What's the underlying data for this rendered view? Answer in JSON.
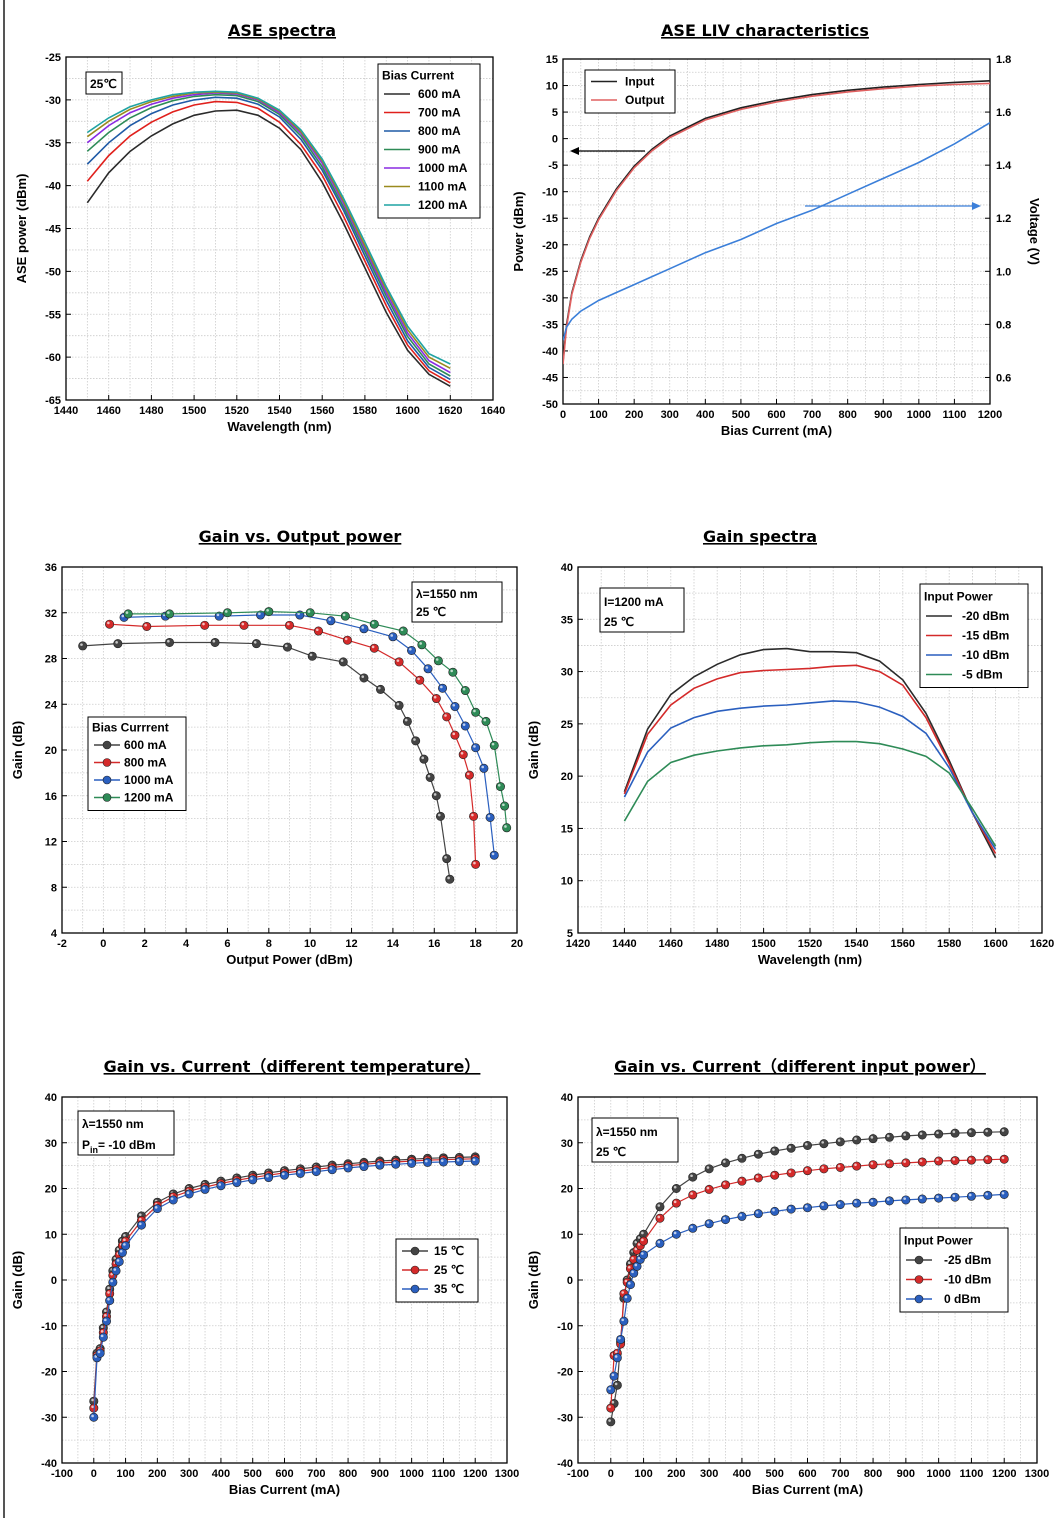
{
  "chart_data": [
    {
      "id": "ase-spectra",
      "type": "line",
      "title": "ASE spectra",
      "xlabel": "Wavelength (nm)",
      "ylabel": "ASE power (dBm)",
      "xlim": [
        1440,
        1640
      ],
      "ylim": [
        -65,
        -25
      ],
      "xticks": [
        1440,
        1460,
        1480,
        1500,
        1520,
        1540,
        1560,
        1580,
        1600,
        1620,
        1640
      ],
      "yticks": [
        -65,
        -60,
        -55,
        -50,
        -45,
        -40,
        -35,
        -30,
        -25
      ],
      "grid": true,
      "annotations": [
        "25℃"
      ],
      "legend_title": "Bias Current",
      "legend_position": "top-right",
      "x": [
        1450,
        1460,
        1470,
        1480,
        1490,
        1500,
        1510,
        1520,
        1530,
        1540,
        1550,
        1560,
        1570,
        1580,
        1590,
        1600,
        1610,
        1620
      ],
      "series": [
        {
          "name": "600 mA",
          "color": "#2b2b2b",
          "values": [
            -42,
            -38.5,
            -36,
            -34.2,
            -32.8,
            -31.8,
            -31.3,
            -31.2,
            -31.8,
            -33.3,
            -35.8,
            -39.6,
            -44.4,
            -49.6,
            -54.8,
            -59.2,
            -62,
            -63.4
          ]
        },
        {
          "name": "700 mA",
          "color": "#e0201c",
          "values": [
            -39.5,
            -36.5,
            -34.2,
            -32.6,
            -31.4,
            -30.6,
            -30.2,
            -30.3,
            -31,
            -32.6,
            -35.2,
            -38.8,
            -43.6,
            -48.8,
            -54,
            -58.6,
            -61.6,
            -63
          ]
        },
        {
          "name": "800 mA",
          "color": "#1f5aa6",
          "values": [
            -37.5,
            -35,
            -33,
            -31.6,
            -30.6,
            -30,
            -29.7,
            -29.8,
            -30.5,
            -32,
            -34.6,
            -38.2,
            -42.9,
            -48.2,
            -53.4,
            -58.1,
            -61.2,
            -62.6
          ]
        },
        {
          "name": "900 mA",
          "color": "#2e8b57",
          "values": [
            -36,
            -33.8,
            -32.1,
            -30.9,
            -30.1,
            -29.6,
            -29.4,
            -29.5,
            -30.2,
            -31.7,
            -34.2,
            -37.8,
            -42.5,
            -47.7,
            -52.9,
            -57.6,
            -60.8,
            -62.2
          ]
        },
        {
          "name": "1000 mA",
          "color": "#8a2be2",
          "values": [
            -35,
            -33,
            -31.5,
            -30.5,
            -29.8,
            -29.4,
            -29.2,
            -29.3,
            -30,
            -31.5,
            -33.9,
            -37.4,
            -42.1,
            -47.3,
            -52.5,
            -57.2,
            -60.4,
            -61.8
          ]
        },
        {
          "name": "1100 mA",
          "color": "#9a8a1e",
          "values": [
            -34.3,
            -32.5,
            -31.1,
            -30.2,
            -29.6,
            -29.2,
            -29.1,
            -29.2,
            -29.9,
            -31.3,
            -33.7,
            -37.1,
            -41.8,
            -47,
            -52.1,
            -56.8,
            -60,
            -61.3
          ]
        },
        {
          "name": "1200 mA",
          "color": "#1fa3a3",
          "values": [
            -33.8,
            -32.1,
            -30.8,
            -30,
            -29.4,
            -29.1,
            -29,
            -29.1,
            -29.8,
            -31.2,
            -33.5,
            -36.9,
            -41.5,
            -46.6,
            -51.8,
            -56.4,
            -59.6,
            -60.8
          ]
        }
      ]
    },
    {
      "id": "ase-liv",
      "type": "line",
      "title": "ASE LIV characteristics",
      "xlabel": "Bias Current (mA)",
      "ylabel": "Power (dBm)",
      "y2label": "Voltage (V)",
      "xlim": [
        0,
        1200
      ],
      "ylim": [
        -50,
        15
      ],
      "y2lim": [
        0.5,
        1.8
      ],
      "xticks": [
        0,
        100,
        200,
        300,
        400,
        500,
        600,
        700,
        800,
        900,
        1000,
        1100,
        1200
      ],
      "yticks": [
        -50,
        -45,
        -40,
        -35,
        -30,
        -25,
        -20,
        -15,
        -10,
        -5,
        0,
        5,
        10,
        15
      ],
      "y2ticks": [
        0.6,
        0.8,
        1.0,
        1.2,
        1.4,
        1.6,
        1.8
      ],
      "grid": true,
      "legend_position": "top-left",
      "x": [
        0,
        10,
        25,
        50,
        75,
        100,
        150,
        200,
        250,
        300,
        400,
        500,
        600,
        700,
        800,
        900,
        1000,
        1100,
        1200
      ],
      "series": [
        {
          "name": "Input",
          "color": "#222222",
          "axis": "left",
          "values": [
            -42,
            -35,
            -29,
            -23,
            -18.5,
            -15,
            -9.5,
            -5.2,
            -2,
            0.5,
            3.8,
            5.8,
            7.2,
            8.3,
            9.1,
            9.7,
            10.2,
            10.6,
            10.9
          ]
        },
        {
          "name": "Output",
          "color": "#e06060",
          "axis": "left",
          "values": [
            -42.5,
            -35.5,
            -29.3,
            -23.3,
            -18.8,
            -15.3,
            -9.8,
            -5.5,
            -2.3,
            0.2,
            3.5,
            5.5,
            6.9,
            8,
            8.8,
            9.4,
            9.9,
            10.2,
            10.4
          ]
        },
        {
          "name": "",
          "color": "#3b7fd9",
          "axis": "right",
          "values": [
            0.74,
            0.79,
            0.82,
            0.85,
            0.87,
            0.89,
            0.92,
            0.95,
            0.98,
            1.01,
            1.07,
            1.12,
            1.18,
            1.23,
            1.29,
            1.35,
            1.41,
            1.48,
            1.56
          ]
        }
      ]
    },
    {
      "id": "gain-vs-output",
      "type": "line",
      "title": "Gain vs. Output power",
      "xlabel": "Output Power (dBm)",
      "ylabel": "Gain (dB)",
      "xlim": [
        -2,
        20
      ],
      "ylim": [
        4,
        36
      ],
      "xticks": [
        -2,
        0,
        2,
        4,
        6,
        8,
        10,
        12,
        14,
        16,
        18,
        20
      ],
      "yticks": [
        4,
        8,
        12,
        16,
        20,
        24,
        28,
        32,
        36
      ],
      "grid": true,
      "annotations": [
        "λ=1550 nm",
        "25 ℃"
      ],
      "legend_title": "Bias Currrent",
      "legend_position": "left",
      "series": [
        {
          "name": "600 mA",
          "color": "#444444",
          "x": [
            -1,
            0.7,
            3.2,
            5.4,
            7.4,
            8.9,
            10.1,
            11.6,
            12.6,
            13.4,
            14.3,
            14.7,
            15.1,
            15.5,
            15.8,
            16.1,
            16.3,
            16.6,
            16.75
          ],
          "y": [
            29.1,
            29.3,
            29.4,
            29.4,
            29.3,
            29,
            28.2,
            27.7,
            26.3,
            25.3,
            23.9,
            22.5,
            20.8,
            19.2,
            17.6,
            16,
            14.2,
            10.5,
            8.7
          ]
        },
        {
          "name": "800 mA",
          "color": "#d42a2a",
          "x": [
            0.3,
            2.1,
            4.9,
            6.8,
            9,
            10.4,
            11.8,
            13.1,
            14.3,
            15.3,
            16.1,
            16.6,
            17,
            17.4,
            17.7,
            17.9,
            18
          ],
          "y": [
            31,
            30.8,
            30.9,
            30.9,
            30.9,
            30.4,
            29.6,
            28.9,
            27.7,
            26.1,
            24.5,
            22.9,
            21.3,
            19.6,
            17.8,
            14.2,
            10
          ]
        },
        {
          "name": "1000 mA",
          "color": "#2a5fbf",
          "x": [
            1,
            3,
            5.6,
            7.6,
            9.5,
            11,
            12.6,
            14,
            14.9,
            15.7,
            16.4,
            17,
            17.5,
            18,
            18.4,
            18.7,
            18.9
          ],
          "y": [
            31.6,
            31.7,
            31.7,
            31.8,
            31.8,
            31.3,
            30.6,
            29.9,
            28.7,
            27.1,
            25.4,
            23.8,
            22.1,
            20.2,
            18.4,
            14.1,
            10.8
          ]
        },
        {
          "name": "1200 mA",
          "color": "#2e8b57",
          "x": [
            1.2,
            3.2,
            6,
            8,
            10,
            11.7,
            13.1,
            14.5,
            15.4,
            16.2,
            16.9,
            17.5,
            18,
            18.5,
            18.9,
            19.2,
            19.4,
            19.5
          ],
          "y": [
            31.9,
            31.9,
            32,
            32.1,
            32,
            31.7,
            31,
            30.4,
            29.2,
            27.8,
            26.8,
            25.2,
            23.3,
            22.5,
            20.4,
            16.8,
            15.1,
            13.2
          ]
        }
      ]
    },
    {
      "id": "gain-spectra",
      "type": "line",
      "title": "Gain spectra",
      "xlabel": "Wavelength (nm)",
      "ylabel": "Gain (dB)",
      "xlim": [
        1420,
        1620
      ],
      "ylim": [
        5,
        40
      ],
      "xticks": [
        1420,
        1440,
        1460,
        1480,
        1500,
        1520,
        1540,
        1560,
        1580,
        1600,
        1620
      ],
      "yticks": [
        5,
        10,
        15,
        20,
        25,
        30,
        35,
        40
      ],
      "grid": true,
      "annotations": [
        "I=1200 mA",
        "25 ℃"
      ],
      "legend_title": "Input Power",
      "legend_position": "top-right",
      "x": [
        1440,
        1450,
        1460,
        1470,
        1480,
        1490,
        1500,
        1510,
        1520,
        1530,
        1540,
        1550,
        1560,
        1570,
        1580,
        1590,
        1600
      ],
      "series": [
        {
          "name": "-20 dBm",
          "color": "#2b2b2b",
          "values": [
            18.5,
            24.5,
            27.8,
            29.5,
            30.7,
            31.6,
            32.1,
            32.2,
            31.9,
            31.9,
            31.8,
            31,
            29.2,
            26,
            21.5,
            16.5,
            12.2
          ]
        },
        {
          "name": "-15 dBm",
          "color": "#d42a2a",
          "values": [
            18.3,
            24,
            26.8,
            28.4,
            29.3,
            29.9,
            30.1,
            30.2,
            30.3,
            30.5,
            30.6,
            30,
            28.7,
            25.6,
            21.2,
            16.5,
            12.6
          ]
        },
        {
          "name": "-10 dBm",
          "color": "#2a5fbf",
          "values": [
            18,
            22.3,
            24.6,
            25.6,
            26.2,
            26.5,
            26.7,
            26.8,
            27,
            27.2,
            27.1,
            26.6,
            25.7,
            24.1,
            20.8,
            16.5,
            13
          ]
        },
        {
          "name": "-5 dBm",
          "color": "#2e8b57",
          "values": [
            15.7,
            19.5,
            21.3,
            22,
            22.4,
            22.7,
            22.9,
            23,
            23.2,
            23.3,
            23.3,
            23.1,
            22.6,
            21.9,
            20.3,
            16.9,
            13.3
          ]
        }
      ]
    },
    {
      "id": "gain-vs-current-temp",
      "type": "line",
      "title": "Gain vs. Current（different temperature）",
      "xlabel": "Bias Current (mA)",
      "ylabel": "Gain (dB)",
      "xlim": [
        -100,
        1300
      ],
      "ylim": [
        -40,
        40
      ],
      "xticks": [
        -100,
        0,
        100,
        200,
        300,
        400,
        500,
        600,
        700,
        800,
        900,
        1000,
        1100,
        1200,
        1300
      ],
      "yticks": [
        -40,
        -30,
        -20,
        -10,
        0,
        10,
        20,
        30,
        40
      ],
      "grid": true,
      "annotations": [
        "λ=1550 nm",
        "P",
        "in",
        "= -10 dBm"
      ],
      "legend_position": "right",
      "x": [
        0,
        10,
        20,
        30,
        40,
        50,
        60,
        70,
        80,
        90,
        100,
        150,
        200,
        250,
        300,
        350,
        400,
        450,
        500,
        550,
        600,
        650,
        700,
        750,
        800,
        850,
        900,
        950,
        1000,
        1050,
        1100,
        1150,
        1200
      ],
      "series": [
        {
          "name": "15 ℃",
          "color": "#444444",
          "values": [
            -26.5,
            -16,
            -15,
            -10.5,
            -7,
            -2,
            2,
            4.5,
            6.5,
            8.5,
            9.5,
            14,
            17,
            18.8,
            20,
            20.9,
            21.6,
            22.3,
            22.9,
            23.4,
            23.9,
            24.3,
            24.7,
            25.1,
            25.4,
            25.7,
            26,
            26.2,
            26.4,
            26.6,
            26.7,
            26.8,
            26.9
          ]
        },
        {
          "name": "25 ℃",
          "color": "#d42a2a",
          "values": [
            -28,
            -16.5,
            -15.5,
            -11.5,
            -8,
            -3,
            1,
            3.5,
            5.5,
            7.5,
            8.5,
            13,
            16.3,
            18.2,
            19.4,
            20.3,
            21.1,
            21.8,
            22.4,
            22.9,
            23.4,
            23.8,
            24.2,
            24.6,
            25,
            25.3,
            25.6,
            25.8,
            26,
            26.2,
            26.3,
            26.4,
            26.5
          ]
        },
        {
          "name": "35 ℃",
          "color": "#2a5fbf",
          "values": [
            -30,
            -17,
            -16,
            -12.5,
            -9,
            -4.5,
            -0.5,
            2,
            4,
            6,
            7.5,
            12,
            15.6,
            17.5,
            18.8,
            19.8,
            20.6,
            21.3,
            21.9,
            22.4,
            22.9,
            23.3,
            23.7,
            24.1,
            24.5,
            24.8,
            25.1,
            25.3,
            25.5,
            25.7,
            25.8,
            25.9,
            26
          ]
        }
      ]
    },
    {
      "id": "gain-vs-current-input",
      "type": "line",
      "title": "Gain vs. Current（different input power）",
      "xlabel": "Bias Current (mA)",
      "ylabel": "Gain (dB)",
      "xlim": [
        -100,
        1300
      ],
      "ylim": [
        -40,
        40
      ],
      "xticks": [
        -100,
        0,
        100,
        200,
        300,
        400,
        500,
        600,
        700,
        800,
        900,
        1000,
        1100,
        1200,
        1300
      ],
      "yticks": [
        -40,
        -30,
        -20,
        -10,
        0,
        10,
        20,
        30,
        40
      ],
      "grid": true,
      "annotations": [
        "λ=1550 nm",
        "25 ℃"
      ],
      "legend_title": "Input Power",
      "legend_position": "right",
      "x": [
        0,
        10,
        20,
        30,
        40,
        50,
        60,
        70,
        80,
        90,
        100,
        150,
        200,
        250,
        300,
        350,
        400,
        450,
        500,
        550,
        600,
        650,
        700,
        750,
        800,
        850,
        900,
        950,
        1000,
        1050,
        1100,
        1150,
        1200
      ],
      "series": [
        {
          "name": "-25 dBm",
          "color": "#444444",
          "values": [
            -31,
            -27,
            -23,
            -13.5,
            -4,
            0,
            3.5,
            6,
            8,
            9,
            10,
            16,
            20,
            22.5,
            24.3,
            25.6,
            26.6,
            27.5,
            28.2,
            28.8,
            29.4,
            29.8,
            30.2,
            30.6,
            30.9,
            31.2,
            31.5,
            31.7,
            31.9,
            32.1,
            32.2,
            32.3,
            32.4
          ]
        },
        {
          "name": "-10 dBm",
          "color": "#d42a2a",
          "values": [
            -28,
            -16.5,
            -16,
            -14,
            -3,
            -0.5,
            2.5,
            4.5,
            6.5,
            7.5,
            8.5,
            13.5,
            16.8,
            18.6,
            19.8,
            20.8,
            21.6,
            22.3,
            22.9,
            23.4,
            23.9,
            24.3,
            24.6,
            24.9,
            25.2,
            25.4,
            25.6,
            25.8,
            26,
            26.1,
            26.2,
            26.3,
            26.4
          ]
        },
        {
          "name": "0 dBm",
          "color": "#2a5fbf",
          "values": [
            -24,
            -21,
            -17,
            -13,
            -9,
            -4,
            -1,
            1.5,
            3,
            4.5,
            5.5,
            8,
            10,
            11.3,
            12.3,
            13.2,
            13.9,
            14.5,
            15,
            15.5,
            15.8,
            16.2,
            16.5,
            16.8,
            17,
            17.3,
            17.5,
            17.7,
            17.9,
            18.1,
            18.3,
            18.5,
            18.7
          ]
        }
      ]
    }
  ]
}
